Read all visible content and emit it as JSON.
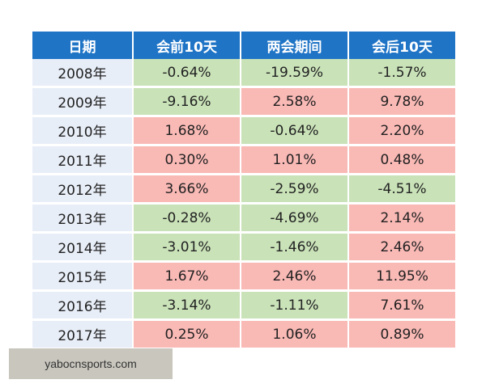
{
  "chart_data": {
    "type": "table",
    "columns": [
      "日期",
      "会前10天",
      "两会期间",
      "会后10天"
    ],
    "rows": [
      [
        "2008年",
        "-0.64%",
        "-19.59%",
        "-1.57%"
      ],
      [
        "2009年",
        "-9.16%",
        "2.58%",
        "9.78%"
      ],
      [
        "2010年",
        "1.68%",
        "-0.64%",
        "2.20%"
      ],
      [
        "2011年",
        "0.30%",
        "1.01%",
        "0.48%"
      ],
      [
        "2012年",
        "3.66%",
        "-2.59%",
        "-4.51%"
      ],
      [
        "2013年",
        "-0.28%",
        "-4.69%",
        "2.14%"
      ],
      [
        "2014年",
        "-3.01%",
        "-1.46%",
        "2.46%"
      ],
      [
        "2015年",
        "1.67%",
        "2.46%",
        "11.95%"
      ],
      [
        "2016年",
        "-3.14%",
        "-1.11%",
        "7.61%"
      ],
      [
        "2017年",
        "0.25%",
        "1.06%",
        "0.89%"
      ]
    ],
    "colors": {
      "header_bg": "#1f74c6",
      "year_bg": "#e8eef8",
      "positive_bg": "#f9b9b5",
      "negative_bg": "#c9e2b8"
    }
  },
  "watermark": {
    "text": "yabocnsports.com"
  }
}
